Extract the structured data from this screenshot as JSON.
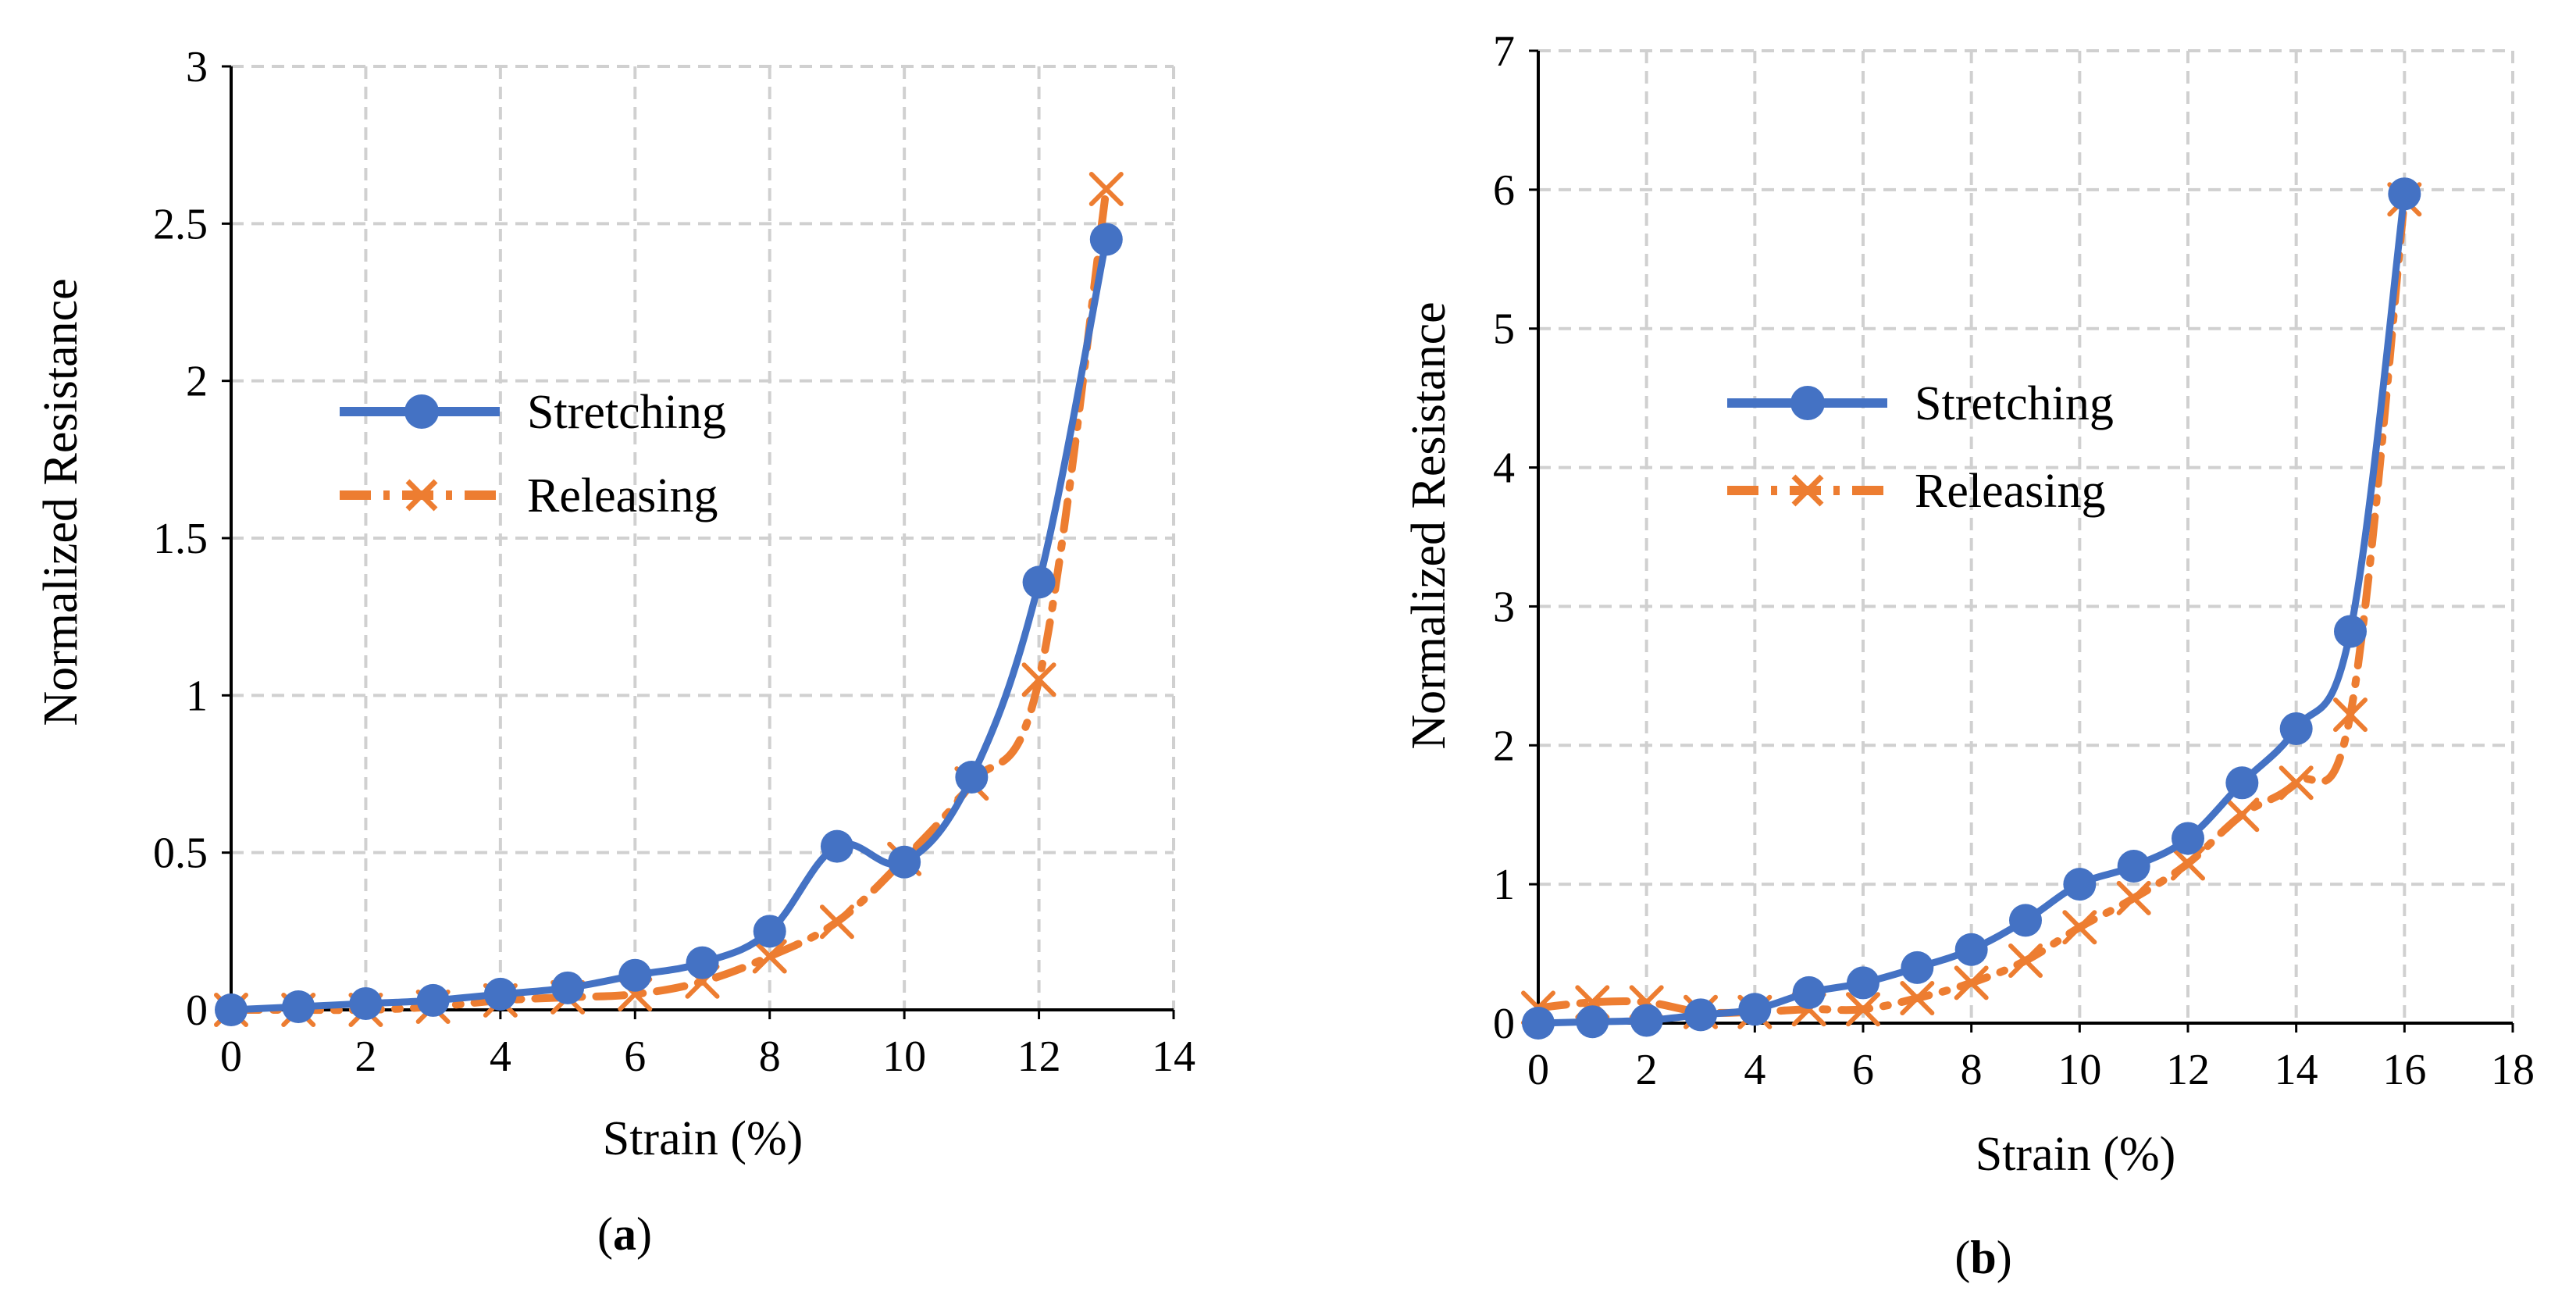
{
  "chart_data": [
    {
      "type": "line",
      "panel_label": "a",
      "xlabel": "Strain (%)",
      "ylabel": "Normalized Resistance",
      "xlim": [
        0,
        14
      ],
      "ylim": [
        0,
        3
      ],
      "xticks": [
        0,
        2,
        4,
        6,
        8,
        10,
        12,
        14
      ],
      "yticks": [
        0,
        0.5,
        1,
        1.5,
        2,
        2.5,
        3
      ],
      "ytick_labels": [
        "0",
        "0.5",
        "1",
        "1.5",
        "2",
        "2.5",
        "3"
      ],
      "grid": true,
      "legend_position": "center-left",
      "series": [
        {
          "name": "Stretching",
          "color": "#4472C4",
          "marker": "circle",
          "line_style": "solid",
          "x": [
            0,
            1,
            2,
            3,
            4,
            5,
            6,
            7,
            8,
            9,
            10,
            11,
            12,
            13
          ],
          "values": [
            0,
            0.01,
            0.02,
            0.03,
            0.05,
            0.07,
            0.11,
            0.15,
            0.25,
            0.52,
            0.47,
            0.74,
            1.36,
            2.45
          ]
        },
        {
          "name": "Releasing",
          "color": "#ED7D31",
          "marker": "x",
          "line_style": "dash-dot",
          "x": [
            0,
            1,
            2,
            3,
            4,
            5,
            6,
            7,
            8,
            9,
            10,
            11,
            12,
            13
          ],
          "values": [
            0,
            0.0,
            0.0,
            0.01,
            0.03,
            0.04,
            0.05,
            0.09,
            0.17,
            0.28,
            0.48,
            0.72,
            1.05,
            2.61
          ]
        }
      ]
    },
    {
      "type": "line",
      "panel_label": "b",
      "xlabel": "Strain (%)",
      "ylabel": "Normalized Resistance",
      "xlim": [
        0,
        18
      ],
      "ylim": [
        0,
        7
      ],
      "xticks": [
        0,
        2,
        4,
        6,
        8,
        10,
        12,
        14,
        16,
        18
      ],
      "yticks": [
        0,
        1,
        2,
        3,
        4,
        5,
        6,
        7
      ],
      "ytick_labels": [
        "0",
        "1",
        "2",
        "3",
        "4",
        "5",
        "6",
        "7"
      ],
      "grid": true,
      "legend_position": "upper-left",
      "series": [
        {
          "name": "Stretching",
          "color": "#4472C4",
          "marker": "circle",
          "line_style": "solid",
          "x": [
            0,
            1,
            2,
            3,
            4,
            5,
            6,
            7,
            8,
            9,
            10,
            11,
            12,
            13,
            14,
            15,
            16
          ],
          "values": [
            0,
            0.01,
            0.02,
            0.06,
            0.1,
            0.22,
            0.29,
            0.4,
            0.53,
            0.74,
            1.0,
            1.13,
            1.33,
            1.73,
            2.12,
            2.82,
            5.97
          ]
        },
        {
          "name": "Releasing",
          "color": "#ED7D31",
          "marker": "x",
          "line_style": "dash-dot",
          "x": [
            0,
            1,
            2,
            3,
            4,
            5,
            6,
            7,
            8,
            9,
            10,
            11,
            12,
            13,
            14,
            15,
            16
          ],
          "values": [
            0.11,
            0.15,
            0.15,
            0.08,
            0.08,
            0.1,
            0.1,
            0.18,
            0.29,
            0.45,
            0.69,
            0.9,
            1.15,
            1.5,
            1.73,
            2.22,
            5.93
          ]
        }
      ]
    }
  ]
}
